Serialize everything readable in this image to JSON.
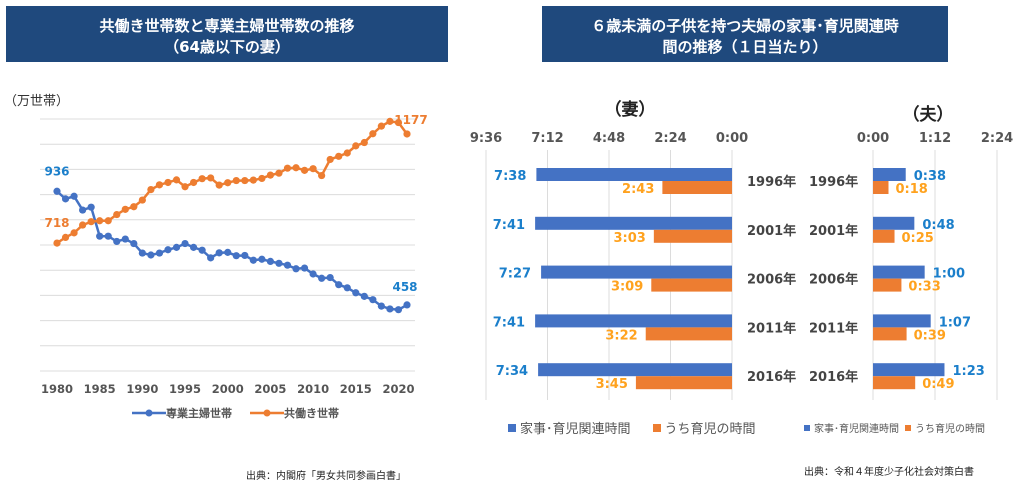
{
  "left_panel": {
    "title_line1": "共働き世帯数と専業主婦世帯数の推移",
    "title_line2": "（64歳以下の妻）",
    "unit_label": "（万世帯）",
    "source": "出典：内閣府「男女共同参画白書」"
  },
  "right_panel": {
    "title_line1": "６歳未満の子供を持つ夫婦の家事･育児関連時",
    "title_line2": "間の推移（１日当たり）",
    "source": "出典：令和４年度少子化社会対策白書"
  },
  "colors": {
    "title_bg": "#1F497D",
    "blue": "#4472C4",
    "orange": "#ED7D31",
    "blue_label": "#1B7FCB",
    "orange_label": "#FFA21E"
  },
  "chart_data": [
    {
      "type": "line",
      "title": "共働き世帯数と専業主婦世帯数の推移（64歳以下の妻）",
      "ylabel": "（万世帯）",
      "xlabel": "",
      "x": [
        1980,
        1981,
        1982,
        1983,
        1984,
        1985,
        1986,
        1987,
        1988,
        1989,
        1990,
        1991,
        1992,
        1993,
        1994,
        1995,
        1996,
        1997,
        1998,
        1999,
        2000,
        2001,
        2002,
        2003,
        2004,
        2005,
        2006,
        2007,
        2008,
        2009,
        2010,
        2011,
        2012,
        2013,
        2014,
        2015,
        2016,
        2017,
        2018,
        2019,
        2020,
        2021
      ],
      "xticks": [
        "1980",
        "1985",
        "1990",
        "1995",
        "2000",
        "2005",
        "2010",
        "2015",
        "2020"
      ],
      "ylim": [
        180,
        1240
      ],
      "grid": true,
      "legend_position": "bottom",
      "series": [
        {
          "name": "専業主婦世帯",
          "color": "#4472C4",
          "values": [
            936,
            904,
            915,
            857,
            869,
            747,
            747,
            725,
            735,
            716,
            676,
            668,
            676,
            690,
            700,
            716,
            700,
            688,
            656,
            677,
            679,
            665,
            666,
            646,
            650,
            641,
            633,
            625,
            610,
            613,
            588,
            570,
            573,
            543,
            530,
            509,
            494,
            480,
            453,
            441,
            438,
            458
          ],
          "annotations": [
            {
              "x": 1980,
              "label": "936"
            },
            {
              "x": 2021,
              "label": "458"
            }
          ]
        },
        {
          "name": "共働き世帯",
          "color": "#ED7D31",
          "values": [
            718,
            742,
            761,
            794,
            808,
            812,
            812,
            838,
            860,
            871,
            899,
            943,
            963,
            973,
            984,
            955,
            973,
            989,
            992,
            962,
            972,
            981,
            981,
            983,
            990,
            1004,
            1012,
            1033,
            1035,
            1024,
            1031,
            1002,
            1070,
            1083,
            1097,
            1127,
            1141,
            1178,
            1210,
            1230,
            1225,
            1177
          ],
          "annotations": [
            {
              "x": 1980,
              "label": "718"
            },
            {
              "x": 2021,
              "label": "1177"
            }
          ]
        }
      ]
    },
    {
      "type": "bar",
      "orientation": "horizontal",
      "title": "（妻）",
      "categories": [
        "1996年",
        "2001年",
        "2006年",
        "2011年",
        "2016年"
      ],
      "xticks": [
        "9:36",
        "7:12",
        "4:48",
        "2:24",
        "0:00"
      ],
      "xlim_minutes": [
        0,
        576
      ],
      "reversed": true,
      "series": [
        {
          "name": "家事･育児関連時間",
          "color": "#4472C4",
          "minutes": [
            458,
            461,
            447,
            461,
            454
          ],
          "labels": [
            "7:38",
            "7:41",
            "7:27",
            "7:41",
            "7:34"
          ]
        },
        {
          "name": "うち育児の時間",
          "color": "#ED7D31",
          "minutes": [
            163,
            183,
            189,
            202,
            225
          ],
          "labels": [
            "2:43",
            "3:03",
            "3:09",
            "3:22",
            "3:45"
          ]
        }
      ],
      "legend_position": "bottom"
    },
    {
      "type": "bar",
      "orientation": "horizontal",
      "title": "（夫）",
      "categories": [
        "1996年",
        "2001年",
        "2006年",
        "2011年",
        "2016年"
      ],
      "xticks": [
        "0:00",
        "1:12",
        "2:24"
      ],
      "xlim_minutes": [
        0,
        144
      ],
      "series": [
        {
          "name": "家事･育児関連時間",
          "color": "#4472C4",
          "minutes": [
            38,
            48,
            60,
            67,
            83
          ],
          "labels": [
            "0:38",
            "0:48",
            "1:00",
            "1:07",
            "1:23"
          ]
        },
        {
          "name": "うち育児の時間",
          "color": "#ED7D31",
          "minutes": [
            18,
            25,
            33,
            39,
            49
          ],
          "labels": [
            "0:18",
            "0:25",
            "0:33",
            "0:39",
            "0:49"
          ]
        }
      ],
      "legend_position": "bottom"
    }
  ]
}
